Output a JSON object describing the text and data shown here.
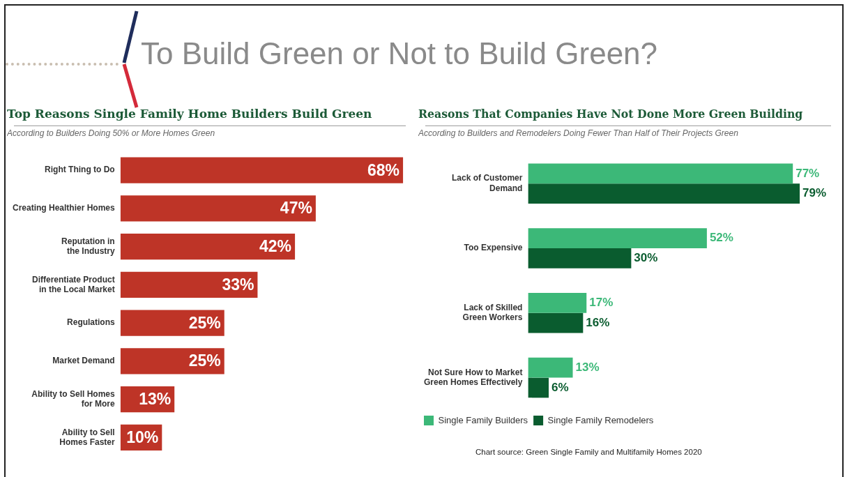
{
  "chart_data": [
    {
      "type": "other",
      "title": "To Build Green or Not to Build Green?",
      "annotations": [
        "Chart source: Green Single Family and Multifamily Homes 2020"
      ]
    },
    {
      "type": "bar",
      "orientation": "horizontal",
      "title": "Top Reasons Single Family Home Builders Build Green",
      "subtitle": "According to Builders Doing 50% or More Homes Green",
      "categories": [
        "Right Thing to Do",
        "Creating Healthier Homes",
        "Reputation in\nthe Industry",
        "Differentiate Product\nin the Local Market",
        "Regulations",
        "Market Demand",
        "Ability to Sell Homes\nfor More",
        "Ability to Sell\nHomes Faster"
      ],
      "values": [
        68,
        47,
        42,
        33,
        25,
        25,
        13,
        10
      ],
      "value_labels": [
        "68%",
        "47%",
        "42%",
        "33%",
        "25%",
        "25%",
        "13%",
        "10%"
      ],
      "color": "#be3427",
      "legend": false,
      "grid": false,
      "tick_labels": "y"
    },
    {
      "type": "bar",
      "orientation": "horizontal",
      "title": "Reasons That Companies Have Not Done More Green Building",
      "subtitle": "According to Builders and Remodelers Doing Fewer Than Half of Their Projects Green",
      "categories": [
        "Lack of Customer\nDemand",
        "Too Expensive",
        "Lack of Skilled\nGreen Workers",
        "Not Sure How to Market\nGreen Homes Effectively"
      ],
      "series": [
        {
          "name": "Single Family Builders",
          "color": "#3cb878",
          "values": [
            77,
            52,
            17,
            13
          ],
          "value_labels": [
            "77%",
            "52%",
            "17%",
            "13%"
          ]
        },
        {
          "name": "Single Family Remodelers",
          "color": "#0a5c2f",
          "values": [
            79,
            30,
            16,
            6
          ],
          "value_labels": [
            "79%",
            "30%",
            "16%",
            "6%"
          ]
        }
      ],
      "legend": "bottom",
      "grid": false,
      "tick_labels": "y"
    }
  ]
}
